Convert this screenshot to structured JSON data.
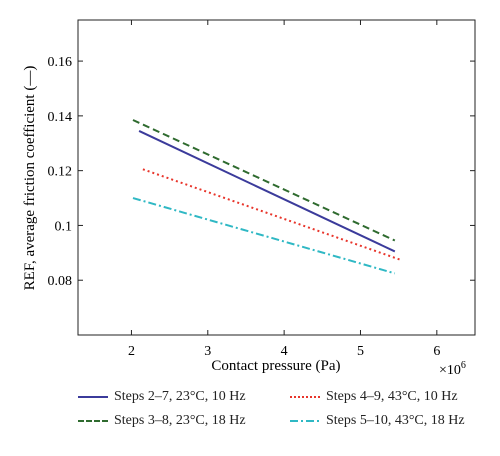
{
  "chart_data": {
    "type": "line",
    "title": "",
    "xlabel": "Contact pressure (Pa)",
    "ylabel": "REF, average friction coefficient (—)",
    "x_multiplier_label": "×10",
    "x_multiplier_exp": "6",
    "xlim": [
      1.3,
      6.5
    ],
    "ylim": [
      0.06,
      0.175
    ],
    "xticks": [
      2,
      3,
      4,
      5,
      6
    ],
    "xtick_labels": [
      "2",
      "3",
      "4",
      "5",
      "6"
    ],
    "yticks": [
      0.08,
      0.1,
      0.12,
      0.14,
      0.16
    ],
    "ytick_labels": [
      "0.08",
      "0.1",
      "0.12",
      "0.14",
      "0.16"
    ],
    "grid": false,
    "legend_position": "bottom",
    "series": [
      {
        "name": "Steps 2–7, 23°C, 10 Hz",
        "color": "#3b3b9b",
        "dash": "solid",
        "x": [
          2.1,
          5.45
        ],
        "y": [
          0.1345,
          0.0905
        ]
      },
      {
        "name": "Steps 3–8, 23°C, 18 Hz",
        "color": "#2f6b2f",
        "dash": "dashed",
        "x": [
          2.02,
          5.45
        ],
        "y": [
          0.1385,
          0.0945
        ]
      },
      {
        "name": "Steps 4–9, 43°C, 10 Hz",
        "color": "#e8352b",
        "dash": "dotted",
        "x": [
          2.15,
          5.52
        ],
        "y": [
          0.1205,
          0.0875
        ]
      },
      {
        "name": "Steps 5–10, 43°C, 18 Hz",
        "color": "#2fb8c4",
        "dash": "dashdot",
        "x": [
          2.02,
          5.45
        ],
        "y": [
          0.11,
          0.0825
        ]
      }
    ]
  },
  "legend": {
    "items": [
      "Steps 2–7, 23°C, 10 Hz",
      "Steps 4–9, 43°C, 10 Hz",
      "Steps 3–8, 23°C, 18 Hz",
      "Steps 5–10, 43°C, 18 Hz"
    ]
  }
}
